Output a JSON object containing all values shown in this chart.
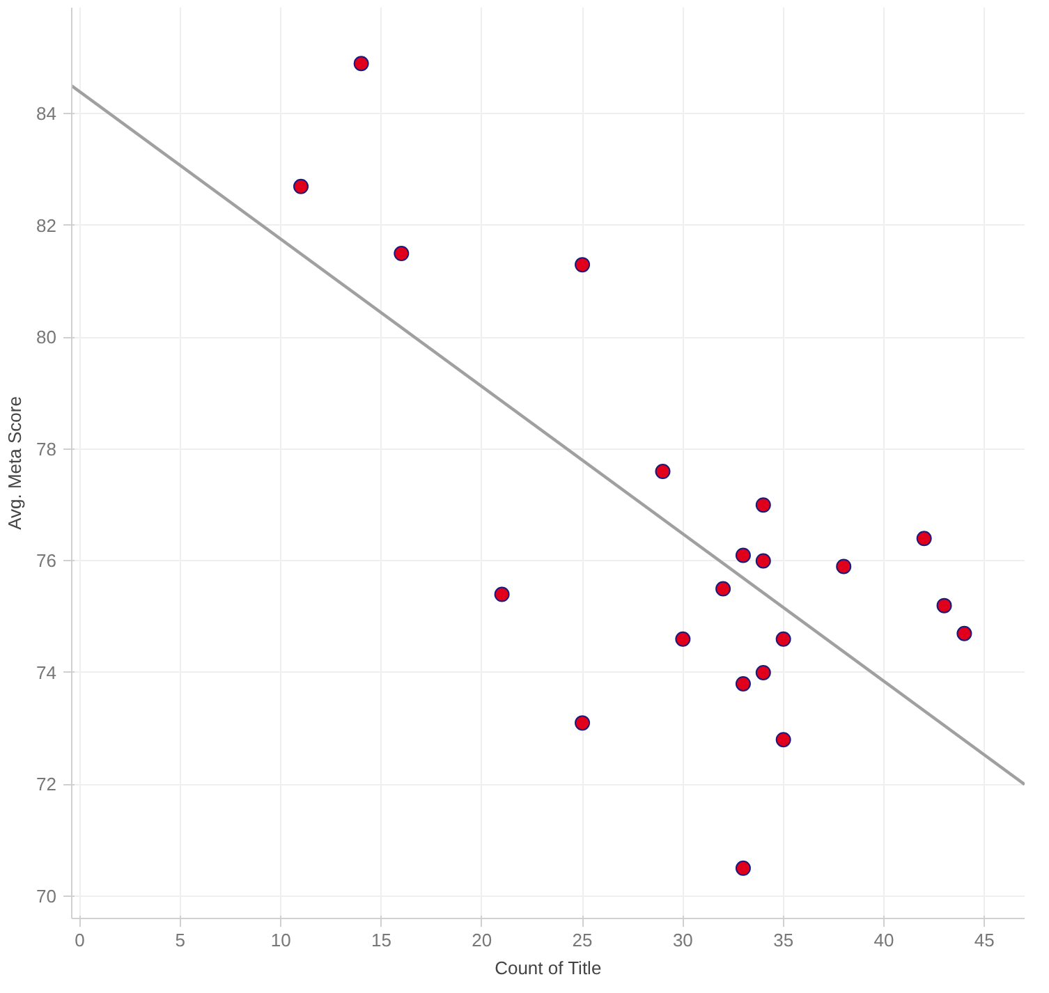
{
  "chart_data": {
    "type": "scatter",
    "xlabel": "Count of Title",
    "ylabel": "Avg. Meta Score",
    "xlim": [
      -0.4,
      47
    ],
    "ylim": [
      69.6,
      85.9
    ],
    "xticks": [
      0,
      5,
      10,
      15,
      20,
      25,
      30,
      35,
      40,
      45
    ],
    "yticks": [
      70,
      72,
      74,
      76,
      78,
      80,
      82,
      84
    ],
    "grid": true,
    "series": [
      {
        "marker": "circle",
        "color": "#e0001b",
        "x": [
          14,
          11,
          16,
          25,
          29,
          34,
          33,
          34,
          38,
          42,
          32,
          21,
          43,
          44,
          30,
          35,
          34,
          33,
          25,
          35,
          33
        ],
        "values": [
          84.9,
          82.7,
          81.5,
          81.3,
          77.6,
          77.0,
          76.1,
          76.0,
          75.9,
          76.4,
          75.5,
          75.4,
          75.2,
          74.7,
          74.6,
          74.6,
          74.0,
          73.8,
          73.1,
          72.8,
          70.5
        ]
      },
      {
        "type": "line",
        "marker": "none",
        "color": "#a0a0a0",
        "x": [
          -0.4,
          47
        ],
        "values": [
          84.5,
          72.0
        ]
      }
    ]
  }
}
